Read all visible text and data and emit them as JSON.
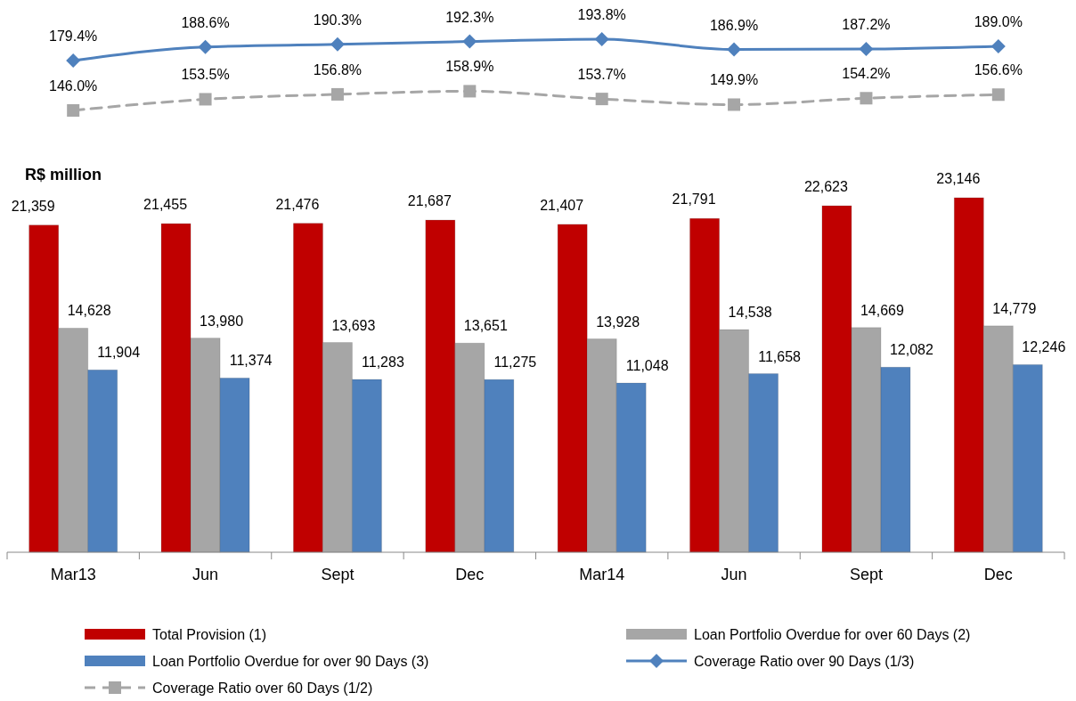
{
  "chart_data": [
    {
      "type": "line",
      "categories": [
        null,
        null,
        null,
        null,
        null,
        null,
        null,
        null
      ],
      "legend": "bottom",
      "series": [
        {
          "name": "Coverage Ratio over 90 Days (1/3)",
          "color": "#4f81bd",
          "marker": "diamond",
          "line_style": "solid",
          "values": [
            179.4,
            188.6,
            190.3,
            192.3,
            193.8,
            186.9,
            187.2,
            189.0
          ],
          "value_labels": [
            "179.4%",
            "188.6%",
            "190.3%",
            "192.3%",
            "193.8%",
            "186.9%",
            "187.2%",
            "189.0%"
          ]
        },
        {
          "name": "Coverage Ratio over 60 Days (1/2)",
          "color": "#a6a6a6",
          "marker": "square",
          "line_style": "dashed",
          "values": [
            146.0,
            153.5,
            156.8,
            158.9,
            153.7,
            149.9,
            154.2,
            156.6
          ],
          "value_labels": [
            "146.0%",
            "153.5%",
            "156.8%",
            "158.9%",
            "153.7%",
            "149.9%",
            "154.2%",
            "156.6%"
          ]
        }
      ]
    },
    {
      "type": "bar",
      "ylabel": "R$ million",
      "categories": [
        "Mar13",
        "Jun",
        "Sept",
        "Dec",
        "Mar14",
        "Jun",
        "Sept",
        "Dec"
      ],
      "legend": "bottom",
      "series": [
        {
          "name": "Total Provision (1)",
          "color": "#c00000",
          "values": [
            21359,
            21455,
            21476,
            21687,
            21407,
            21791,
            22623,
            23146
          ],
          "value_labels": [
            "21,359",
            "21,455",
            "21,476",
            "21,687",
            "21,407",
            "21,791",
            "22,623",
            "23,146"
          ]
        },
        {
          "name": "Loan Portfolio Overdue for over 60 Days (2)",
          "color": "#a6a6a6",
          "values": [
            14628,
            13980,
            13693,
            13651,
            13928,
            14538,
            14669,
            14779
          ],
          "value_labels": [
            "14,628",
            "13,980",
            "13,693",
            "13,651",
            "13,928",
            "14,538",
            "14,669",
            "14,779"
          ]
        },
        {
          "name": "Loan Portfolio Overdue for over 90 Days (3)",
          "color": "#4f81bd",
          "values": [
            11904,
            11374,
            11283,
            11275,
            11048,
            11658,
            12082,
            12246
          ],
          "value_labels": [
            "11,904",
            "11,374",
            "11,283",
            "11,275",
            "11,048",
            "11,658",
            "12,082",
            "12,246"
          ]
        }
      ]
    }
  ]
}
